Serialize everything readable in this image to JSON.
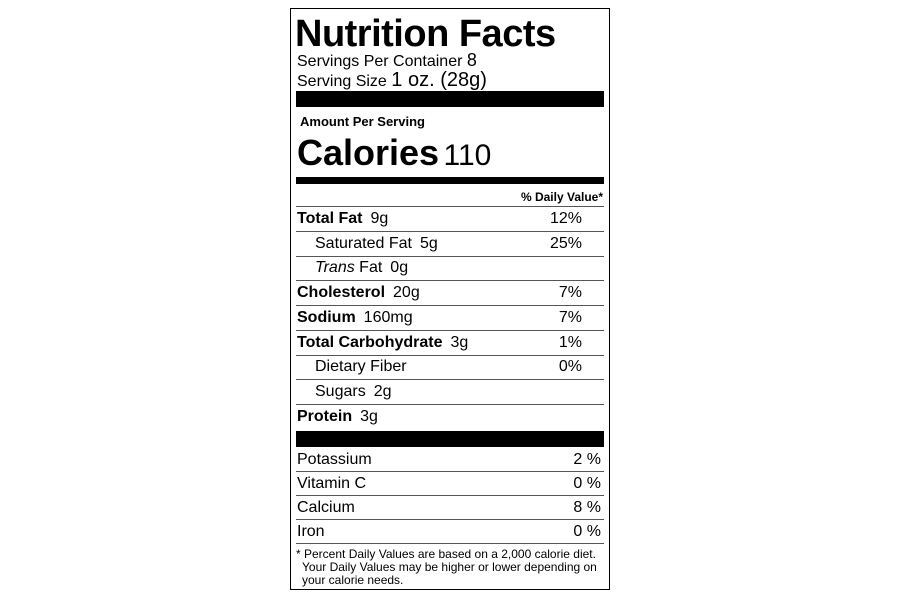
{
  "title": "Nutrition Facts",
  "servings": {
    "label": "Servings Per Container",
    "value": "8"
  },
  "serving_size": {
    "label": "Serving Size",
    "value": "1 oz. (28g)"
  },
  "amount_per_serving": "Amount Per Serving",
  "calories": {
    "label": "Calories",
    "value": "110"
  },
  "daily_value_header": "% Daily Value*",
  "nutrients": [
    {
      "name": "Total Fat",
      "amount": "9g",
      "dv": "12%",
      "bold": true,
      "indent": false
    },
    {
      "name": "Saturated Fat",
      "amount": "5g",
      "dv": "25%",
      "bold": false,
      "indent": true
    },
    {
      "name_italic": "Trans",
      "name": "Fat",
      "amount": "0g",
      "bold": false,
      "indent": true
    },
    {
      "name": "Cholesterol",
      "amount": "20g",
      "dv": "7%",
      "bold": true,
      "indent": false
    },
    {
      "name": "Sodium",
      "amount": "160mg",
      "dv": "7%",
      "bold": true,
      "indent": false
    },
    {
      "name": "Total Carbohydrate",
      "amount": "3g",
      "dv": "1%",
      "bold": true,
      "indent": false
    },
    {
      "name": "Dietary Fiber",
      "dv": "0%",
      "bold": false,
      "indent": true
    },
    {
      "name": "Sugars",
      "amount": "2g",
      "bold": false,
      "indent": true
    },
    {
      "name": "Protein",
      "amount": "3g",
      "bold": true,
      "indent": false
    }
  ],
  "vitamins": [
    {
      "name": "Potassium",
      "dv": "2 %"
    },
    {
      "name": "Vitamin C",
      "dv": "0 %"
    },
    {
      "name": "Calcium",
      "dv": "8 %"
    },
    {
      "name": "Iron",
      "dv": "0 %"
    }
  ],
  "footnote": [
    "* Percent Daily Values are based on a 2,000 calorie diet.",
    "Your Daily Values may be higher or lower depending on",
    "your calorie needs."
  ]
}
